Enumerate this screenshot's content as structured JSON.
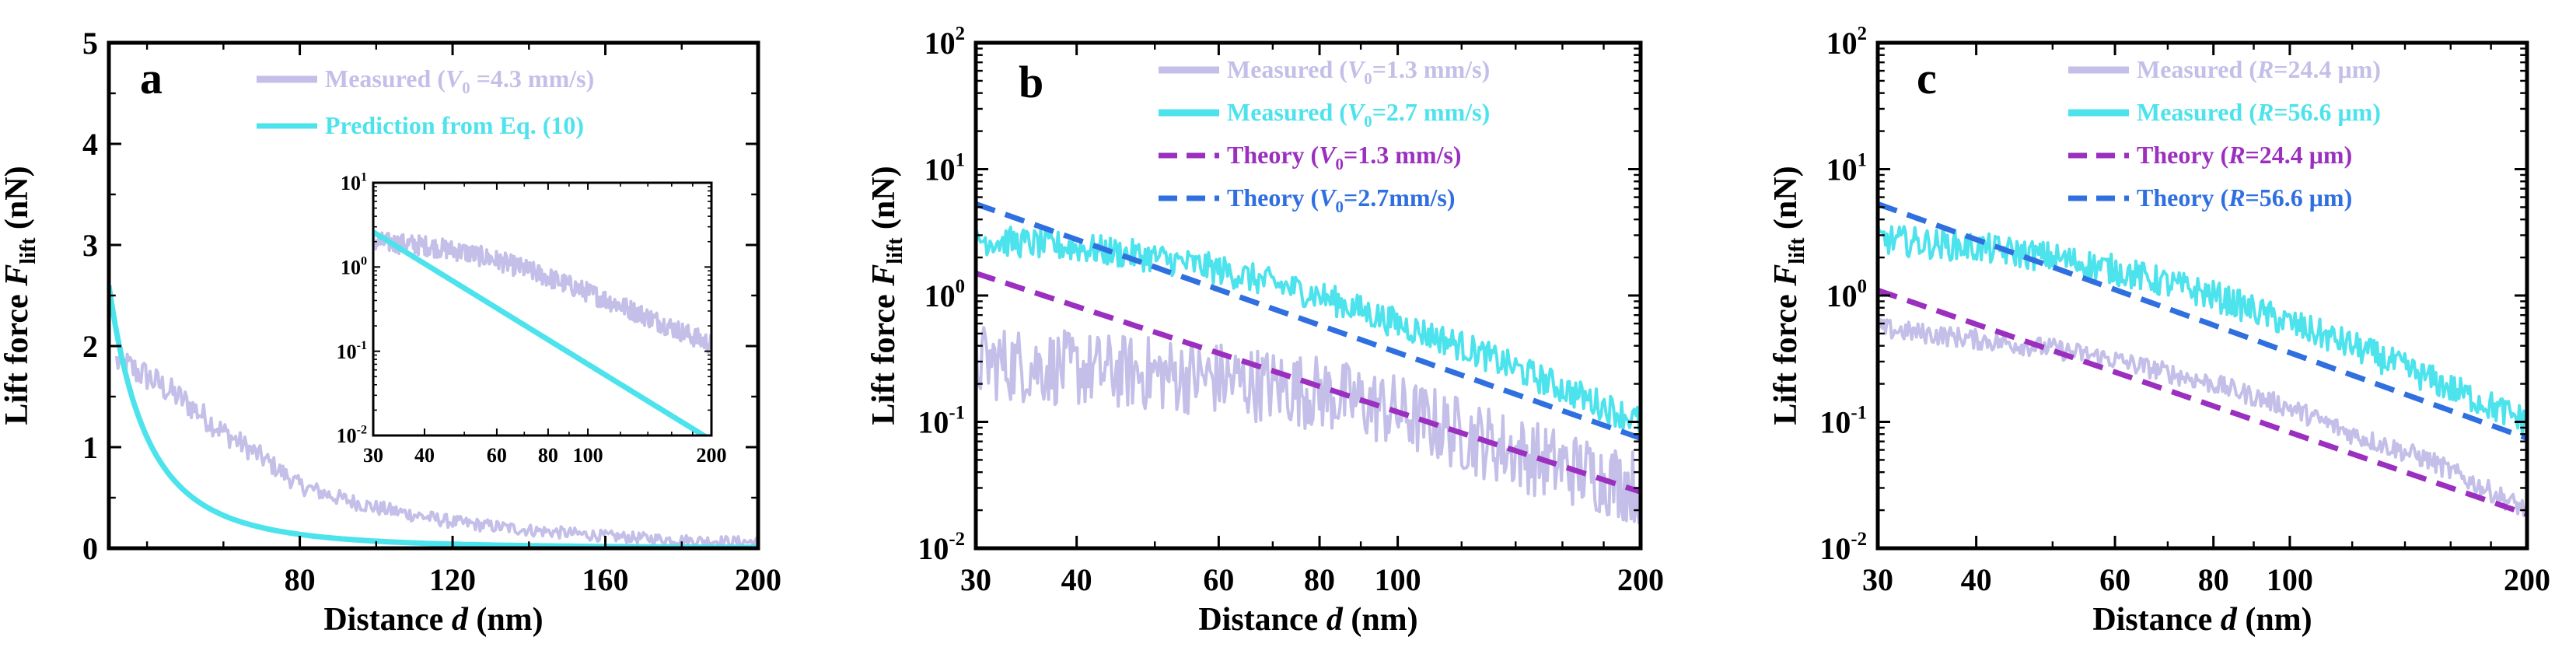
{
  "chart_data": [
    {
      "panel": "a",
      "type": "line",
      "xlabel": {
        "text": "Distance ",
        "italic": "d",
        "unit": " (nm)"
      },
      "ylabel": {
        "text": "Lift force  ",
        "italic": "F",
        "sub": "lift",
        "unit": " (nN)"
      },
      "xscale": "linear",
      "yscale": "linear",
      "xlim": [
        30,
        200
      ],
      "ylim": [
        0,
        5
      ],
      "xticks": [
        80,
        120,
        160,
        200
      ],
      "xtick_labels": [
        "80",
        "120",
        "160",
        "200"
      ],
      "yticks": [
        0,
        1,
        2,
        3,
        4,
        5
      ],
      "ytick_labels": [
        "0",
        "1",
        "2",
        "3",
        "4",
        "5"
      ],
      "legend_position": "top-right",
      "series": [
        {
          "name": "Measured",
          "legend_parts": [
            {
              "t": "Measured ("
            },
            {
              "t": "V",
              "i": true
            },
            {
              "t": "0",
              "sub": true
            },
            {
              "t": " =4.3 mm/s)"
            }
          ],
          "style": "noisy",
          "color": "#c3bfe8",
          "x": [
            32,
            40,
            50,
            60,
            70,
            80,
            90,
            100,
            120,
            140,
            160,
            180,
            200
          ],
          "y": [
            1.85,
            1.7,
            1.45,
            1.15,
            0.9,
            0.62,
            0.5,
            0.4,
            0.26,
            0.18,
            0.12,
            0.08,
            0.06
          ],
          "noise": 0.1
        },
        {
          "name": "Prediction from Eq. (10)",
          "legend_parts": [
            {
              "t": "Prediction from Eq. (10)"
            }
          ],
          "style": "solid",
          "color": "#4de3ec",
          "curve": "power",
          "A": 2.6,
          "p": 3.0
        }
      ],
      "inset": {
        "xscale": "log",
        "yscale": "log",
        "xlim": [
          30,
          200
        ],
        "ylim": [
          0.01,
          10
        ],
        "xticks": [
          30,
          40,
          60,
          80,
          100,
          200
        ],
        "xtick_labels": [
          "30",
          "40",
          "60",
          "80",
          "100",
          "200"
        ],
        "yticks": [
          0.01,
          0.1,
          1,
          10
        ],
        "ytick_labels": [
          {
            "m": "10",
            "e": "-2"
          },
          {
            "m": "10",
            "e": "-1"
          },
          {
            "m": "10",
            "e": "0"
          },
          {
            "m": "10",
            "e": "1"
          }
        ],
        "series": [
          {
            "style": "noisy",
            "color": "#c3bfe8",
            "x": [
              30,
              40,
              50,
              60,
              70,
              80,
              100,
              120,
              150,
              200
            ],
            "y": [
              2.0,
              1.8,
              1.5,
              1.2,
              0.95,
              0.75,
              0.5,
              0.35,
              0.22,
              0.12
            ],
            "noise": 0.12
          },
          {
            "style": "solid",
            "color": "#4de3ec",
            "curve": "power",
            "A": 2.6,
            "p": 3.0
          }
        ]
      }
    },
    {
      "panel": "b",
      "type": "line",
      "xlabel": {
        "text": "Distance ",
        "italic": "d",
        "unit": " (nm)"
      },
      "ylabel": {
        "text": "Lift force  ",
        "italic": "F",
        "sub": "lift",
        "unit": " (nN)"
      },
      "xscale": "log",
      "yscale": "log",
      "xlim": [
        30,
        200
      ],
      "ylim": [
        0.01,
        100
      ],
      "xticks": [
        30,
        40,
        60,
        80,
        100,
        200
      ],
      "xtick_labels": [
        "30",
        "40",
        "60",
        "80",
        "100",
        "200"
      ],
      "yticks": [
        0.01,
        0.1,
        1,
        10,
        100
      ],
      "ytick_labels": [
        {
          "m": "10",
          "e": "-2"
        },
        {
          "m": "10",
          "e": "-1"
        },
        {
          "m": "10",
          "e": "0"
        },
        {
          "m": "10",
          "e": "1"
        },
        {
          "m": "10",
          "e": "2"
        }
      ],
      "legend_position": "top-right",
      "series": [
        {
          "name": "Measured (V0=1.3 mm/s)",
          "legend_parts": [
            {
              "t": "Measured ("
            },
            {
              "t": "V",
              "i": true
            },
            {
              "t": "0",
              "sub": true
            },
            {
              "t": "=1.3 mm/s)"
            }
          ],
          "style": "noisy",
          "color": "#c3bfe8",
          "x": [
            30,
            40,
            50,
            60,
            80,
            100,
            120,
            150,
            200
          ],
          "y": [
            0.3,
            0.26,
            0.24,
            0.22,
            0.17,
            0.12,
            0.08,
            0.05,
            0.03
          ],
          "noise": 0.3
        },
        {
          "name": "Measured (V0=2.7 mm/s)",
          "legend_parts": [
            {
              "t": "Measured ("
            },
            {
              "t": "V",
              "i": true
            },
            {
              "t": "0",
              "sub": true
            },
            {
              "t": "=2.7 mm/s)"
            }
          ],
          "style": "noisy",
          "color": "#4de3ec",
          "x": [
            30,
            40,
            50,
            60,
            80,
            100,
            120,
            150,
            200
          ],
          "y": [
            2.8,
            2.4,
            2.0,
            1.6,
            1.0,
            0.6,
            0.4,
            0.22,
            0.1
          ],
          "noise": 0.12
        },
        {
          "name": "Theory (V0=1.3 mm/s)",
          "legend_parts": [
            {
              "t": "Theory ("
            },
            {
              "t": "V",
              "i": true
            },
            {
              "t": "0",
              "sub": true
            },
            {
              "t": "=1.3 mm/s)"
            }
          ],
          "style": "dashed",
          "color": "#9b2fbf",
          "curve": "power",
          "A": 1.5,
          "p": 2.1
        },
        {
          "name": "Theory (V0=2.7mm/s)",
          "legend_parts": [
            {
              "t": "Theory ("
            },
            {
              "t": "V",
              "i": true
            },
            {
              "t": "0",
              "sub": true
            },
            {
              "t": "=2.7mm/s)"
            }
          ],
          "style": "dashed",
          "color": "#2f6fe0",
          "curve": "power",
          "A": 5.3,
          "p": 2.25
        }
      ]
    },
    {
      "panel": "c",
      "type": "line",
      "xlabel": {
        "text": "Distance ",
        "italic": "d",
        "unit": " (nm)"
      },
      "ylabel": {
        "text": "Lift force  ",
        "italic": "F",
        "sub": "lift",
        "unit": " (nN)"
      },
      "xscale": "log",
      "yscale": "log",
      "xlim": [
        30,
        200
      ],
      "ylim": [
        0.01,
        100
      ],
      "xticks": [
        30,
        40,
        60,
        80,
        100,
        200
      ],
      "xtick_labels": [
        "30",
        "40",
        "60",
        "80",
        "100",
        "200"
      ],
      "yticks": [
        0.01,
        0.1,
        1,
        10,
        100
      ],
      "ytick_labels": [
        {
          "m": "10",
          "e": "-2"
        },
        {
          "m": "10",
          "e": "-1"
        },
        {
          "m": "10",
          "e": "0"
        },
        {
          "m": "10",
          "e": "1"
        },
        {
          "m": "10",
          "e": "2"
        }
      ],
      "legend_position": "top-right",
      "series": [
        {
          "name": "Measured (R=24.4 μm)",
          "legend_parts": [
            {
              "t": "Measured ("
            },
            {
              "t": "R",
              "i": true
            },
            {
              "t": "=24.4 μm)"
            }
          ],
          "style": "noisy",
          "color": "#c3bfe8",
          "x": [
            30,
            40,
            50,
            60,
            80,
            100,
            120,
            150,
            200
          ],
          "y": [
            0.55,
            0.45,
            0.38,
            0.31,
            0.2,
            0.13,
            0.08,
            0.05,
            0.02
          ],
          "noise": 0.08
        },
        {
          "name": "Measured (R=56.6 μm)",
          "legend_parts": [
            {
              "t": "Measured ("
            },
            {
              "t": "R",
              "i": true
            },
            {
              "t": "=56.6 μm)"
            }
          ],
          "style": "noisy",
          "color": "#4de3ec",
          "x": [
            30,
            40,
            50,
            60,
            80,
            100,
            120,
            150,
            200
          ],
          "y": [
            2.8,
            2.4,
            2.0,
            1.6,
            1.0,
            0.6,
            0.4,
            0.22,
            0.1
          ],
          "noise": 0.12
        },
        {
          "name": "Theory (R=24.4 μm)",
          "legend_parts": [
            {
              "t": "Theory ("
            },
            {
              "t": "R",
              "i": true
            },
            {
              "t": "=24.4 μm)"
            }
          ],
          "style": "dashed",
          "color": "#9b2fbf",
          "curve": "power",
          "A": 1.1,
          "p": 2.15
        },
        {
          "name": "Theory (R=56.6 μm)",
          "legend_parts": [
            {
              "t": "Theory ("
            },
            {
              "t": "R",
              "i": true
            },
            {
              "t": "=56.6 μm)"
            }
          ],
          "style": "dashed",
          "color": "#2f6fe0",
          "curve": "power",
          "A": 5.3,
          "p": 2.25
        }
      ]
    }
  ]
}
